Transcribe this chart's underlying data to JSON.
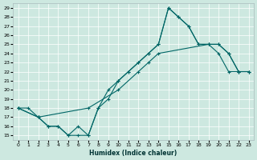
{
  "xlabel": "Humidex (Indice chaleur)",
  "background_color": "#cde8e0",
  "line_color": "#006666",
  "xlim": [
    -0.5,
    23.5
  ],
  "ylim": [
    14.5,
    29.5
  ],
  "xticks": [
    0,
    1,
    2,
    3,
    4,
    5,
    6,
    7,
    8,
    9,
    10,
    11,
    12,
    13,
    14,
    15,
    16,
    17,
    18,
    19,
    20,
    21,
    22,
    23
  ],
  "yticks": [
    15,
    16,
    17,
    18,
    19,
    20,
    21,
    22,
    23,
    24,
    25,
    26,
    27,
    28,
    29
  ],
  "line1_x": [
    0,
    1,
    2,
    3,
    4,
    5,
    6,
    7,
    8,
    9,
    10,
    11,
    12,
    13,
    14,
    15,
    16,
    17,
    18,
    19,
    20,
    21,
    22,
    23
  ],
  "line1_y": [
    18,
    18,
    17,
    16,
    16,
    15,
    15,
    15,
    18,
    20,
    21,
    22,
    23,
    24,
    25,
    29,
    28,
    27,
    25,
    25,
    24,
    22,
    22,
    22
  ],
  "line2_x": [
    0,
    2,
    3,
    4,
    5,
    6,
    7,
    8,
    9,
    10,
    11,
    12,
    13,
    14,
    15,
    16,
    17,
    18,
    19,
    20,
    21,
    22,
    23
  ],
  "line2_y": [
    18,
    17,
    16,
    16,
    15,
    16,
    15,
    18,
    19,
    21,
    22,
    23,
    24,
    25,
    29,
    28,
    27,
    25,
    25,
    25,
    24,
    22,
    22
  ],
  "line3_x": [
    0,
    2,
    7,
    10,
    12,
    13,
    14,
    19,
    20,
    21,
    22,
    23
  ],
  "line3_y": [
    18,
    17,
    18,
    20,
    22,
    23,
    24,
    25,
    25,
    24,
    22,
    22
  ]
}
